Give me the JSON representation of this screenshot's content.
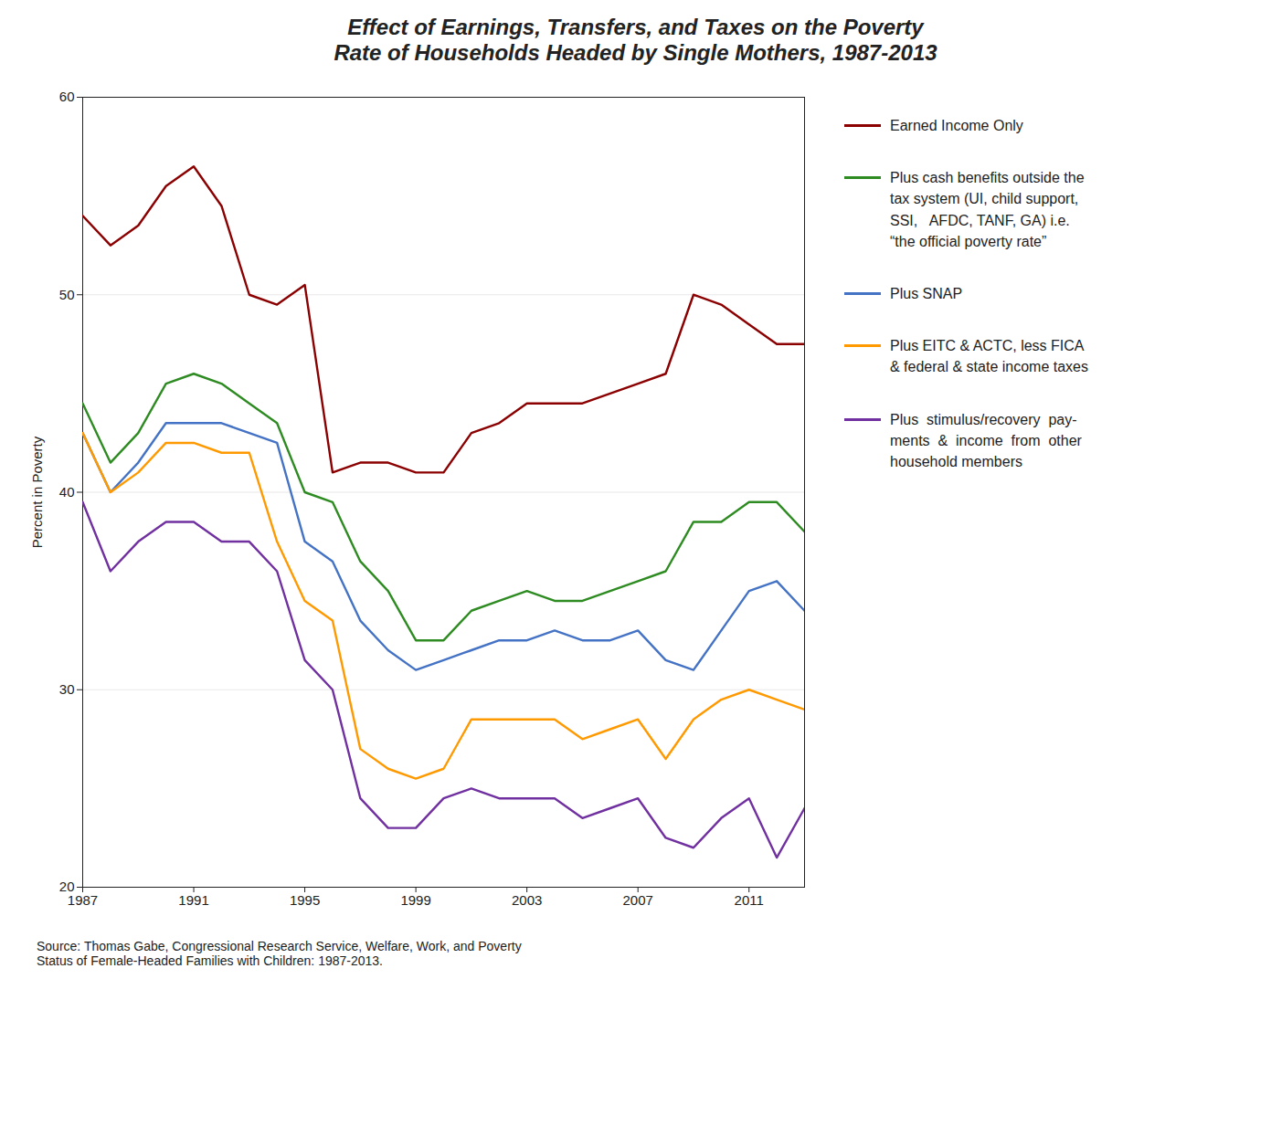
{
  "chart_data": {
    "type": "line",
    "title": "Effect of Earnings, Transfers, and Taxes on the Poverty\nRate of Households Headed by Single Mothers, 1987-2013",
    "ylabel": "Percent in Poverty",
    "source": "Source: Thomas Gabe, Congressional Research Service, Welfare, Work, and Poverty\nStatus of Female-Headed Families with Children: 1987-2013.",
    "x": [
      1987,
      1988,
      1989,
      1990,
      1991,
      1992,
      1993,
      1994,
      1995,
      1996,
      1997,
      1998,
      1999,
      2000,
      2001,
      2002,
      2003,
      2004,
      2005,
      2006,
      2007,
      2008,
      2009,
      2010,
      2011,
      2012,
      2013
    ],
    "xlim": [
      1987,
      2013
    ],
    "xticks": [
      1987,
      1991,
      1995,
      1999,
      2003,
      2007,
      2011
    ],
    "ylim": [
      20,
      60
    ],
    "yticks": [
      20,
      30,
      40,
      50,
      60
    ],
    "grid": "y",
    "legend": "right",
    "series": [
      {
        "name": "Earned Income Only",
        "color": "#8B0000",
        "values": [
          54.0,
          52.5,
          53.5,
          55.5,
          56.5,
          54.5,
          50.0,
          49.5,
          50.5,
          41.0,
          41.5,
          41.5,
          41.0,
          41.0,
          43.0,
          43.5,
          44.5,
          44.5,
          44.5,
          45.0,
          45.5,
          46.0,
          50.0,
          49.5,
          48.5,
          47.5,
          47.5
        ]
      },
      {
        "name": "Plus cash benefits outside the\ntax system (UI, child support,\nSSI,   AFDC, TANF, GA) i.e.\n“the official poverty rate”",
        "color": "#2E8B22",
        "values": [
          44.5,
          41.5,
          43.0,
          45.5,
          46.0,
          45.5,
          44.5,
          43.5,
          40.0,
          39.5,
          36.5,
          35.0,
          32.5,
          32.5,
          34.0,
          34.5,
          35.0,
          34.5,
          34.5,
          35.0,
          35.5,
          36.0,
          38.5,
          38.5,
          39.5,
          39.5,
          38.0
        ]
      },
      {
        "name": "Plus SNAP",
        "color": "#4472C4",
        "values": [
          43.0,
          40.0,
          41.5,
          43.5,
          43.5,
          43.5,
          43.0,
          42.5,
          37.5,
          36.5,
          33.5,
          32.0,
          31.0,
          31.5,
          32.0,
          32.5,
          32.5,
          33.0,
          32.5,
          32.5,
          33.0,
          31.5,
          31.0,
          33.0,
          35.0,
          35.5,
          34.0
        ]
      },
      {
        "name": "Plus EITC & ACTC, less FICA\n& federal & state income taxes",
        "color": "#FF9900",
        "values": [
          43.0,
          40.0,
          41.0,
          42.5,
          42.5,
          42.0,
          42.0,
          37.5,
          34.5,
          33.5,
          27.0,
          26.0,
          25.5,
          26.0,
          28.5,
          28.5,
          28.5,
          28.5,
          27.5,
          28.0,
          28.5,
          26.5,
          28.5,
          29.5,
          30.0,
          29.5,
          29.0
        ]
      },
      {
        "name": "Plus  stimulus/recovery  pay-\nments  &  income  from  other\nhousehold members",
        "color": "#7030A0",
        "values": [
          39.5,
          36.0,
          37.5,
          38.5,
          38.5,
          37.5,
          37.5,
          36.0,
          31.5,
          30.0,
          24.5,
          23.0,
          23.0,
          24.5,
          25.0,
          24.5,
          24.5,
          24.5,
          23.5,
          24.0,
          24.5,
          22.5,
          22.0,
          23.5,
          24.5,
          21.5,
          24.0
        ]
      }
    ]
  }
}
